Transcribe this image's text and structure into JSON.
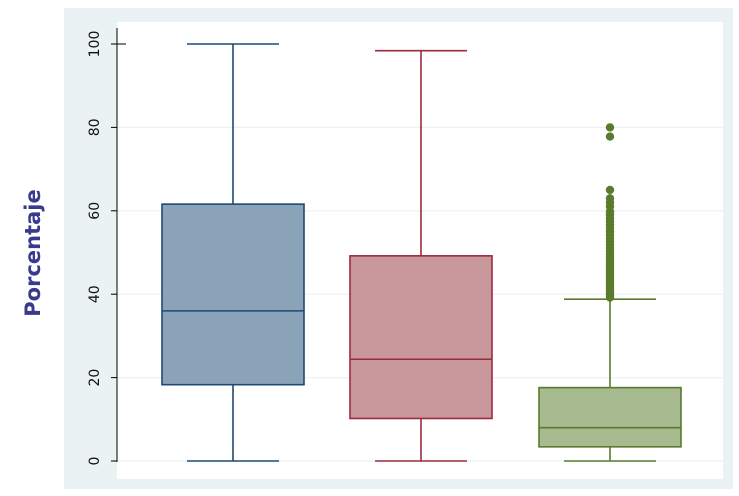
{
  "chart_data": {
    "type": "box",
    "title": "",
    "xlabel": "",
    "ylabel": "Porcentaje",
    "ylim": [
      0,
      100
    ],
    "yticks": [
      0,
      20,
      40,
      60,
      80,
      100
    ],
    "ytick_labels": [
      "0",
      "20",
      "40",
      "60",
      "80",
      "100"
    ],
    "grid": true,
    "legend": "none",
    "colors": {
      "plot_region_bg": "#EAF2F3",
      "plot_area_bg": "#FFFFFF",
      "gridline": "#EAF2F3",
      "axis": "#000000",
      "ylabel": "#3A3A8C"
    },
    "series": [
      {
        "fill": "#8AA3B8",
        "stroke": "#1E4A72",
        "whisker_low": 0,
        "q1": 18.3,
        "median": 36,
        "q3": 61.6,
        "whisker_high": 100,
        "outliers": []
      },
      {
        "fill": "#C8979C",
        "stroke": "#9C2B3C",
        "whisker_low": 0,
        "q1": 10.2,
        "median": 24.4,
        "q3": 49.2,
        "whisker_high": 98.4,
        "outliers": []
      },
      {
        "fill": "#A8BA90",
        "stroke": "#5A7A2C",
        "whisker_low": 0,
        "q1": 3.4,
        "median": 8,
        "q3": 17.6,
        "whisker_high": 38.8,
        "outliers": [
          39.2,
          39.6,
          40,
          40.4,
          40.8,
          41.2,
          41.6,
          42,
          42.5,
          43,
          43.5,
          44,
          44.5,
          45,
          45.5,
          46,
          46.6,
          47.2,
          47.8,
          48.4,
          49,
          49.6,
          50.2,
          51,
          51.8,
          52.6,
          53.4,
          54.2,
          55,
          55.8,
          56.6,
          57.4,
          58.2,
          59,
          59.8,
          61,
          62,
          63,
          65,
          77.8,
          80
        ]
      }
    ]
  }
}
